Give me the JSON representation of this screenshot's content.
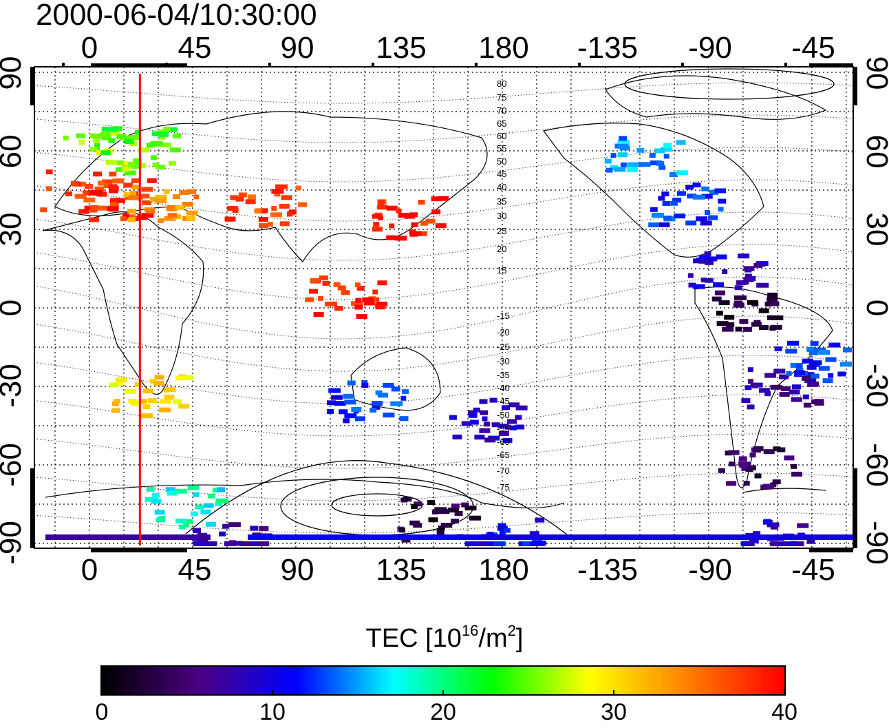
{
  "title": "2000-06-04/10:30:00",
  "map": {
    "top_lon_ticks": [
      "0",
      "45",
      "90",
      "135",
      "180",
      "-135",
      "-90",
      "-45"
    ],
    "bottom_lon_ticks": [
      "0",
      "45",
      "90",
      "135",
      "180",
      "-135",
      "-90",
      "-45"
    ],
    "left_lat_ticks": [
      "90",
      "60",
      "30",
      "0",
      "-30",
      "-60",
      "-90"
    ],
    "right_lat_ticks": [
      "90",
      "60",
      "30",
      "0",
      "-30",
      "-60",
      "-90"
    ],
    "contour_labels": [
      "80",
      "75",
      "70",
      "65",
      "60",
      "55",
      "50",
      "45",
      "40",
      "35",
      "30",
      "25",
      "20",
      "15",
      "-15",
      "-20",
      "-25",
      "-30",
      "-35",
      "-40",
      "-45",
      "-50",
      "-55",
      "-60",
      "-65",
      "-70",
      "-75"
    ],
    "meridian_line_lon": 22,
    "meridian_line_color": "#ff0000"
  },
  "colorbar": {
    "title_prefix": "TEC  [10",
    "title_exp1": "16",
    "title_mid": "/m",
    "title_exp2": "2",
    "title_suffix": "]",
    "min": 0,
    "max": 40,
    "tick_labels": [
      "0",
      "10",
      "20",
      "30",
      "40"
    ],
    "colors": [
      "#000000",
      "#4b0082",
      "#0000ff",
      "#00ffff",
      "#00ff00",
      "#ffff00",
      "#ff8000",
      "#ff0000"
    ]
  },
  "tec_regions": [
    {
      "lon": -5,
      "lat": 45,
      "tec": 38
    },
    {
      "lon": 10,
      "lat": 42,
      "tec": 38
    },
    {
      "lon": 5,
      "lat": 60,
      "tec": 26
    },
    {
      "lon": 20,
      "lat": 62,
      "tec": 24
    },
    {
      "lon": 30,
      "lat": 40,
      "tec": 33
    },
    {
      "lon": 75,
      "lat": 40,
      "tec": 37
    },
    {
      "lon": 138,
      "lat": 35,
      "tec": 39
    },
    {
      "lon": 110,
      "lat": 5,
      "tec": 39
    },
    {
      "lon": 25,
      "lat": -33,
      "tec": 30
    },
    {
      "lon": 120,
      "lat": -35,
      "tec": 12
    },
    {
      "lon": 170,
      "lat": -42,
      "tec": 9
    },
    {
      "lon": -100,
      "lat": 40,
      "tec": 12
    },
    {
      "lon": -120,
      "lat": 58,
      "tec": 15
    },
    {
      "lon": -85,
      "lat": 15,
      "tec": 9
    },
    {
      "lon": -75,
      "lat": 0,
      "tec": 2
    },
    {
      "lon": -60,
      "lat": -30,
      "tec": 7
    },
    {
      "lon": -45,
      "lat": -20,
      "tec": 12
    },
    {
      "lon": -70,
      "lat": -60,
      "tec": 4
    },
    {
      "lon": 40,
      "lat": -75,
      "tec": 18
    },
    {
      "lon": 150,
      "lat": -80,
      "tec": 3
    },
    {
      "lon": 60,
      "lat": -88,
      "tec": 7
    },
    {
      "lon": 180,
      "lat": -88,
      "tec": 11
    },
    {
      "lon": -60,
      "lat": -88,
      "tec": 9
    }
  ]
}
